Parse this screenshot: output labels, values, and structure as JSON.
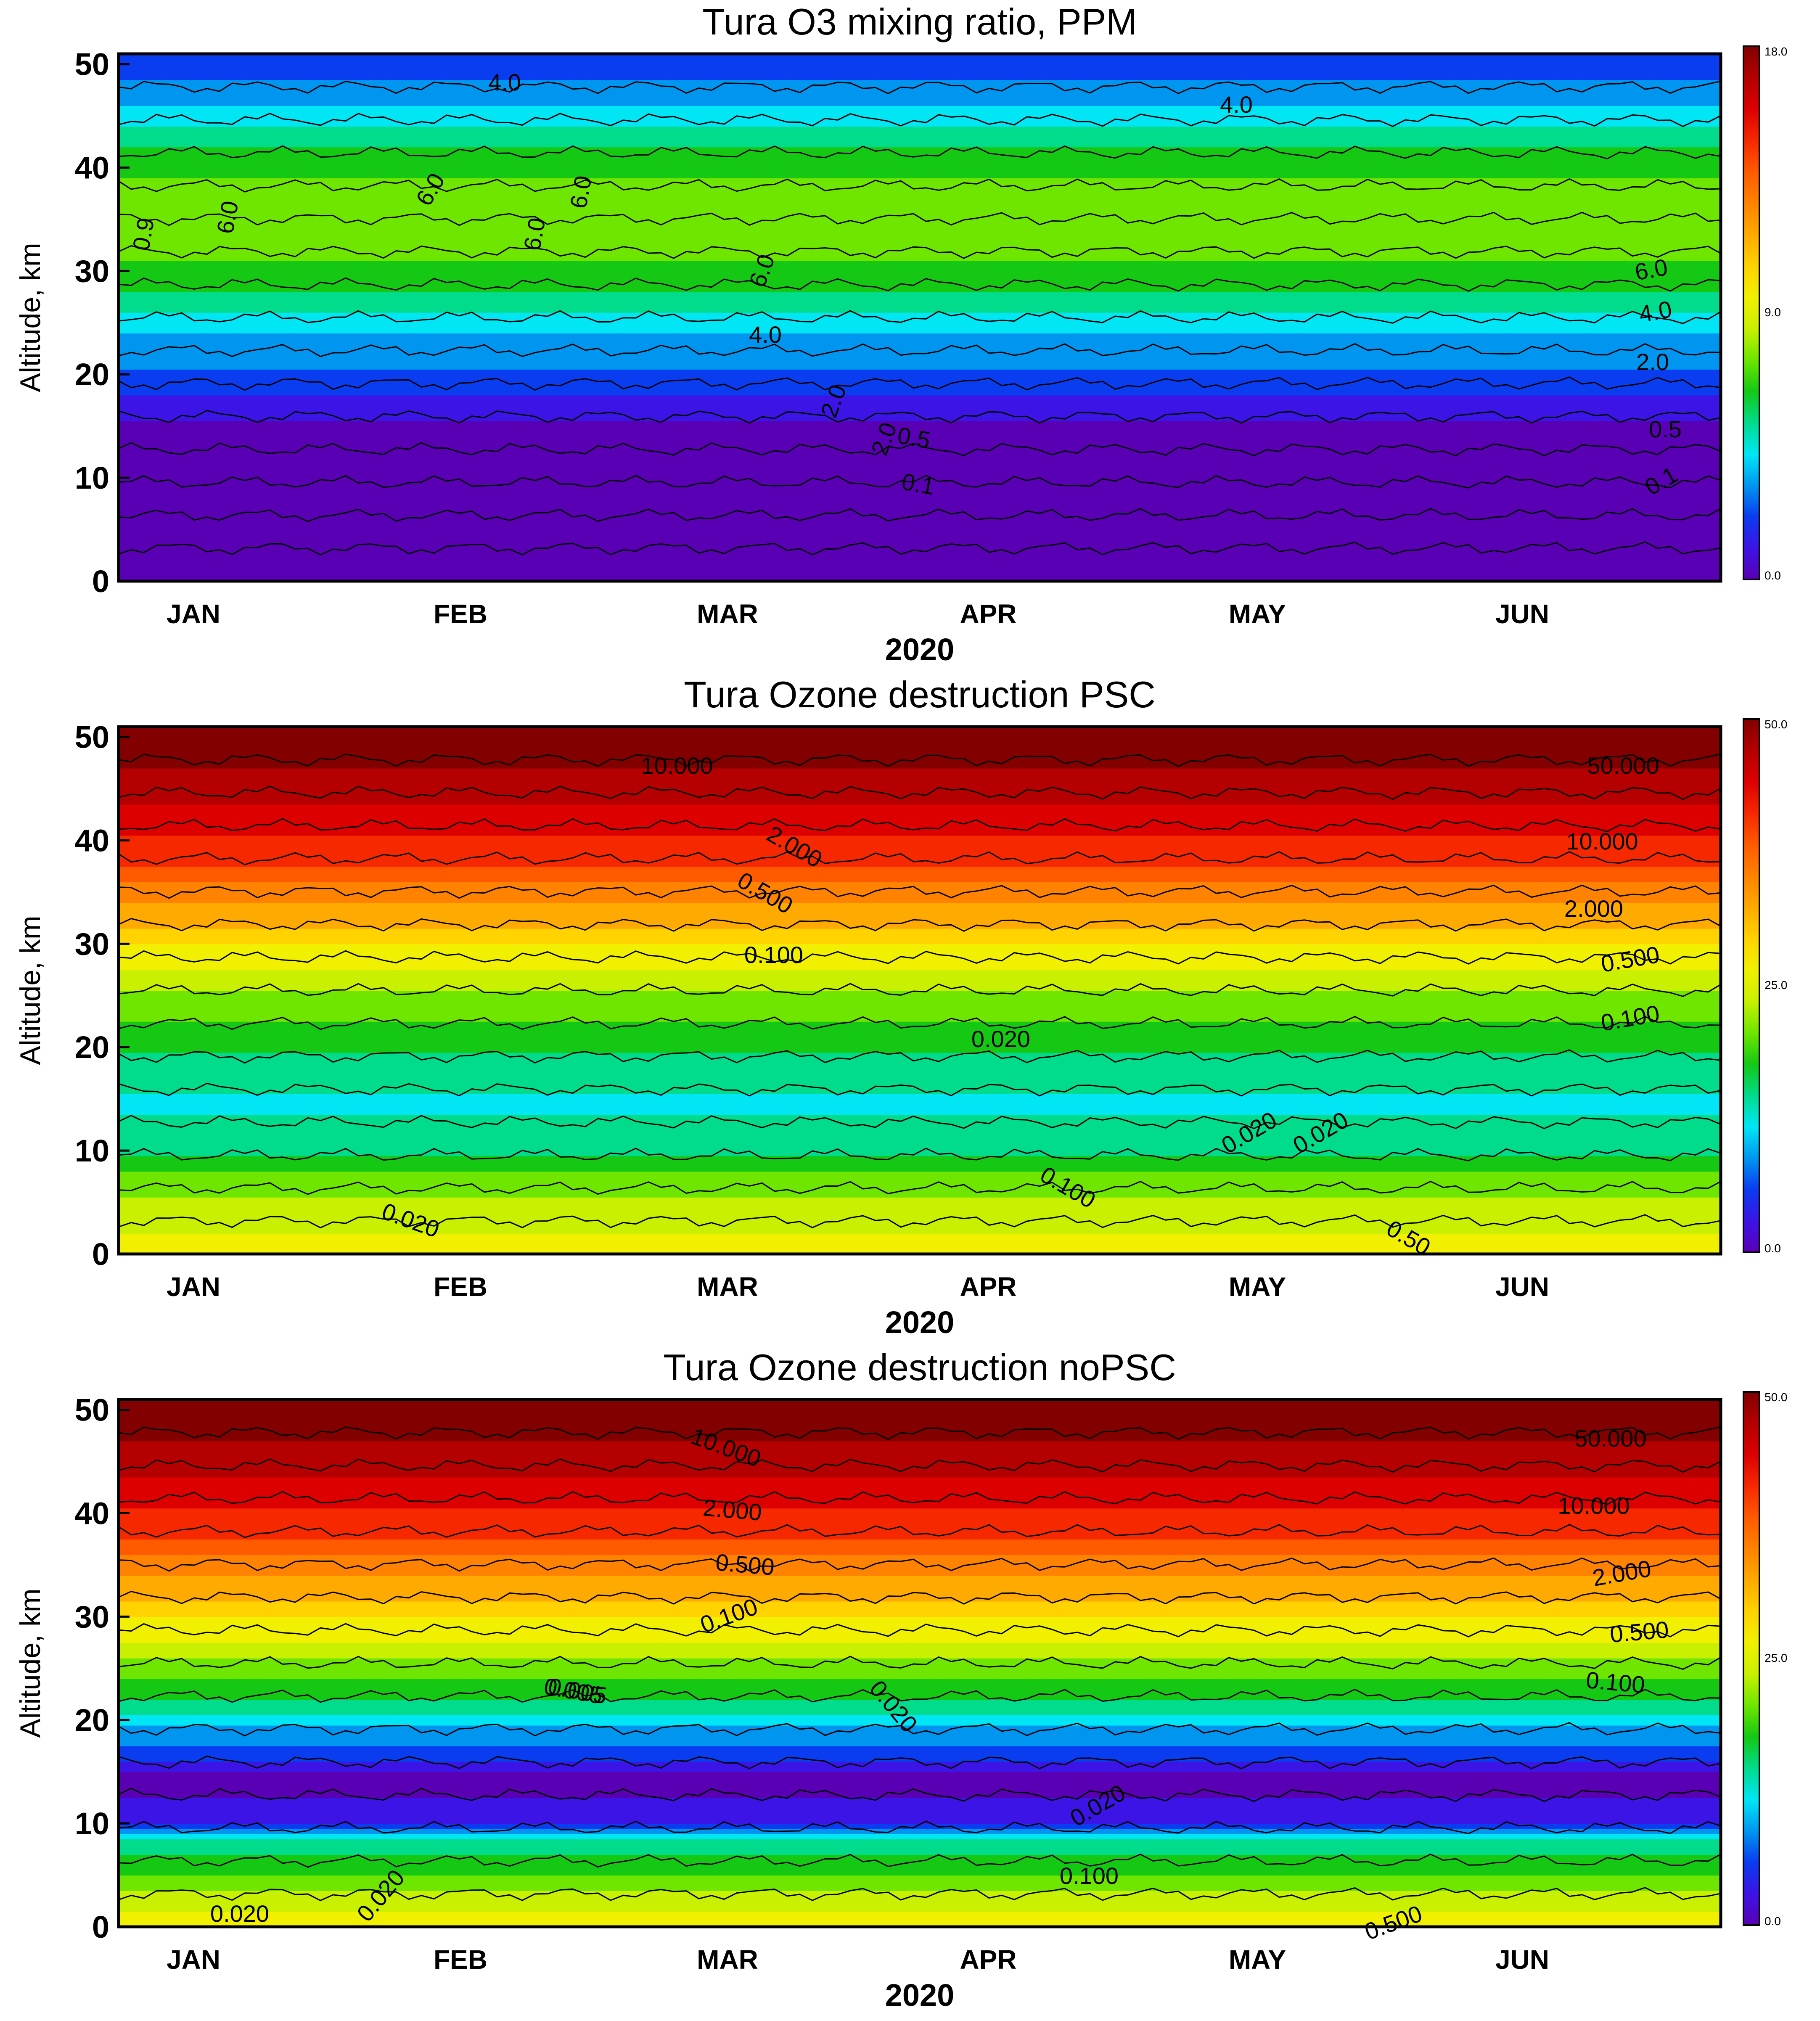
{
  "figure": {
    "type": "contour-panels",
    "colors": {
      "palette": [
        "#5a00b4",
        "#3c14e6",
        "#0a3cf0",
        "#0096f0",
        "#00e6f5",
        "#00dc8c",
        "#14c814",
        "#6ee600",
        "#c8f000",
        "#f0f000",
        "#ffd200",
        "#ffaa00",
        "#ff8200",
        "#ff5a00",
        "#f52800",
        "#dc0000",
        "#b40000",
        "#820000"
      ]
    }
  },
  "chart_data": [
    {
      "type": "heatmap",
      "title": "Tura O3 mixing ratio, PPM",
      "xlabel": "2020",
      "ylabel": "Altitude, km",
      "x_ticks": [
        "JAN",
        "FEB",
        "MAR",
        "APR",
        "MAY",
        "JUN"
      ],
      "y_ticks": [
        "0",
        "10",
        "20",
        "30",
        "40",
        "50"
      ],
      "ylim": [
        0,
        51
      ],
      "colorbar": {
        "min_label": "0.0",
        "mid_label": "9.0",
        "max_label": "18.0"
      },
      "contour_labels": [
        "0.9",
        "6.0",
        "6.0",
        "6.0",
        "6.0",
        "4.0",
        "4.0",
        "2.0",
        "6.0",
        "4.0",
        "2.0",
        "0.5",
        "0.1",
        "6.0",
        "4.0",
        "2.0",
        "0.5",
        "0.1"
      ],
      "profile": [
        [
          0,
          0.03
        ],
        [
          8,
          0.08
        ],
        [
          11,
          0.15
        ],
        [
          13,
          0.4
        ],
        [
          15,
          0.9
        ],
        [
          17,
          1.6
        ],
        [
          20,
          2.8
        ],
        [
          24,
          4.0
        ],
        [
          27,
          5.5
        ],
        [
          30,
          6.8
        ],
        [
          35,
          7.6
        ],
        [
          40,
          6.8
        ],
        [
          44,
          5.0
        ],
        [
          47,
          3.6
        ],
        [
          51,
          2.2
        ]
      ],
      "data_labels": [
        "0.9",
        "6.0",
        "6.0",
        "6.0",
        "6.0",
        "4.0",
        "4.0",
        "2.0",
        "6.0",
        "4.0",
        "2.0",
        "0.5",
        "0.1",
        "6.0",
        "4.0",
        "2.0",
        "0.5",
        "0.1"
      ]
    },
    {
      "type": "heatmap",
      "title": "Tura Ozone destruction PSC",
      "xlabel": "2020",
      "ylabel": "Altitude, km",
      "x_ticks": [
        "JAN",
        "FEB",
        "MAR",
        "APR",
        "MAY",
        "JUN"
      ],
      "y_ticks": [
        "0",
        "10",
        "20",
        "30",
        "40",
        "50"
      ],
      "ylim": [
        0,
        51
      ],
      "colorbar": {
        "min_label": "0.0",
        "mid_label": "25.0",
        "max_label": "50.0"
      },
      "contour_labels": [
        "10.000",
        "2.000",
        "0.500",
        "0.100",
        "0.020",
        "0.020",
        "0.100",
        "0.50",
        "50.000",
        "10.000",
        "2.000",
        "0.500",
        "0.100",
        "0.020",
        "0.020"
      ],
      "profile": [
        [
          0,
          0.4
        ],
        [
          5,
          0.2
        ],
        [
          10,
          0.04
        ],
        [
          15,
          0.03
        ],
        [
          20,
          0.06
        ],
        [
          25,
          0.15
        ],
        [
          30,
          0.5
        ],
        [
          35,
          2.0
        ],
        [
          40,
          8.0
        ],
        [
          45,
          20.0
        ],
        [
          51,
          45.0
        ]
      ],
      "data_labels": [
        "10.000",
        "2.000",
        "0.500",
        "0.100",
        "0.020",
        "0.020",
        "0.100",
        "0.50",
        "50.000",
        "10.000",
        "2.000",
        "0.500",
        "0.100",
        "0.020",
        "0.020"
      ]
    },
    {
      "type": "heatmap",
      "title": "Tura Ozone destruction noPSC",
      "xlabel": "2020",
      "ylabel": "Altitude, km",
      "x_ticks": [
        "JAN",
        "FEB",
        "MAR",
        "APR",
        "MAY",
        "JUN"
      ],
      "y_ticks": [
        "0",
        "10",
        "20",
        "30",
        "40",
        "50"
      ],
      "ylim": [
        0,
        51
      ],
      "colorbar": {
        "min_label": "0.0",
        "mid_label": "25.0",
        "max_label": "50.0"
      },
      "contour_labels": [
        "10.000",
        "2.000",
        "0.500",
        "0.100",
        "0.005",
        "0.020",
        "0.020",
        "0.100",
        "0.500",
        "50.000",
        "10.000",
        "2.000",
        "0.500",
        "0.100",
        "0.005",
        "0.020",
        "0.020"
      ],
      "profile": [
        [
          0,
          0.4
        ],
        [
          5,
          0.1
        ],
        [
          10,
          0.004
        ],
        [
          15,
          0.003
        ],
        [
          20,
          0.02
        ],
        [
          25,
          0.12
        ],
        [
          30,
          0.5
        ],
        [
          35,
          2.0
        ],
        [
          40,
          8.0
        ],
        [
          45,
          20.0
        ],
        [
          51,
          45.0
        ]
      ],
      "data_labels": [
        "10.000",
        "2.000",
        "0.500",
        "0.100",
        "0.005",
        "0.020",
        "0.020",
        "0.100",
        "0.500",
        "50.000",
        "10.000",
        "2.000",
        "0.500",
        "0.100",
        "0.005",
        "0.020",
        "0.020"
      ]
    }
  ]
}
